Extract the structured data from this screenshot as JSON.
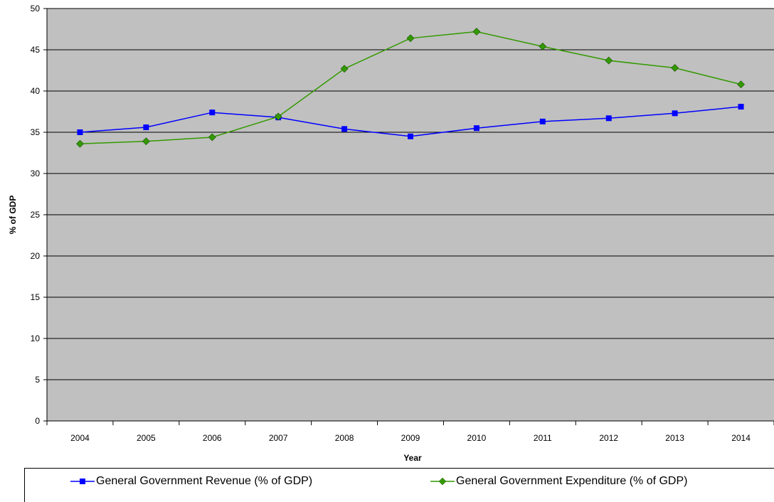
{
  "chart_data": {
    "type": "line",
    "x": [
      "2004",
      "2005",
      "2006",
      "2007",
      "2008",
      "2009",
      "2010",
      "2011",
      "2012",
      "2013",
      "2014"
    ],
    "xlabel": "Year",
    "ylabel": "% of GDP",
    "ylim": [
      0,
      50
    ],
    "yticks": [
      "0",
      "5",
      "10",
      "15",
      "20",
      "25",
      "30",
      "35",
      "40",
      "45",
      "50"
    ],
    "grid": true,
    "legend_position": "bottom",
    "series": [
      {
        "name": "General Government Revenue (% of GDP)",
        "color": "#0000FF",
        "marker": "square",
        "values": [
          35.0,
          35.6,
          37.4,
          36.8,
          35.4,
          34.5,
          35.5,
          36.3,
          36.7,
          37.3,
          38.1
        ]
      },
      {
        "name": "General Government Expenditure (% of GDP)",
        "color": "#339900",
        "marker": "diamond",
        "values": [
          33.6,
          33.9,
          34.4,
          36.9,
          42.7,
          46.4,
          47.2,
          45.4,
          43.7,
          42.8,
          40.8
        ]
      }
    ],
    "plot_background": "#C0C0C0"
  }
}
